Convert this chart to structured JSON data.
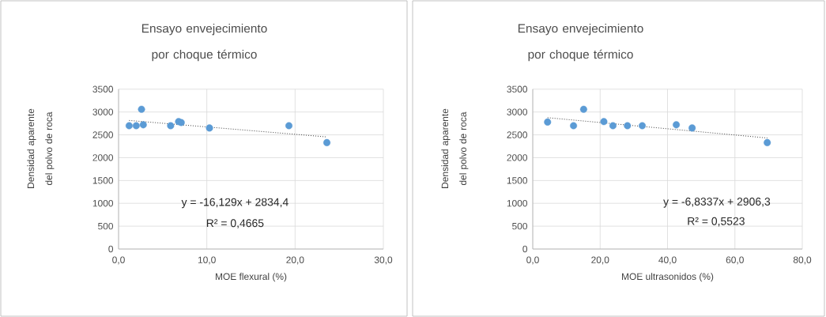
{
  "chart_data": [
    {
      "type": "scatter",
      "title": "Ensayo  envejecimiento por choque térmico",
      "xlabel": "MOE flexural (%)",
      "ylabel": "Densidad aparente del polvo de roca",
      "xlim": [
        0,
        30
      ],
      "xticks": [
        {
          "value": 0,
          "label": "0,0"
        },
        {
          "value": 10,
          "label": "10,0"
        },
        {
          "value": 20,
          "label": "20,0"
        },
        {
          "value": 30,
          "label": "30,0"
        }
      ],
      "ylim": [
        0,
        3500
      ],
      "yticks": [
        0,
        500,
        1000,
        1500,
        2000,
        2500,
        3000,
        3500
      ],
      "grid": true,
      "series": [
        {
          "color": "#5b9bd5",
          "marker": "circle",
          "x": [
            1.2,
            2.0,
            2.6,
            2.8,
            5.9,
            6.8,
            7.1,
            10.3,
            19.3,
            23.6
          ],
          "values": [
            2700,
            2700,
            3060,
            2720,
            2700,
            2790,
            2770,
            2650,
            2700,
            2330
          ]
        },
        {
          "type": "line",
          "color": "#404040",
          "line_style": "dotted",
          "marker": "none",
          "x": [
            1.2,
            23.6
          ],
          "values": [
            2815,
            2454
          ]
        }
      ],
      "annotations": [
        "y = -16,129x + 2834,4",
        "R² = 0,4665"
      ]
    },
    {
      "type": "scatter",
      "title": "Ensayo  envejecimiento por choque térmico",
      "xlabel": "MOE ultrasonidos (%)",
      "ylabel": "Densidad aparente del polvo de roca",
      "xlim": [
        0,
        80
      ],
      "xticks": [
        {
          "value": 0,
          "label": "0,0"
        },
        {
          "value": 20,
          "label": "20,0"
        },
        {
          "value": 40,
          "label": "40,0"
        },
        {
          "value": 60,
          "label": "60,0"
        },
        {
          "value": 80,
          "label": "80,0"
        }
      ],
      "ylim": [
        0,
        3500
      ],
      "yticks": [
        0,
        500,
        1000,
        1500,
        2000,
        2500,
        3000,
        3500
      ],
      "grid": true,
      "series": [
        {
          "color": "#5b9bd5",
          "marker": "circle",
          "x": [
            4.4,
            12.1,
            15.1,
            21.1,
            23.8,
            28.1,
            32.5,
            42.6,
            47.3,
            69.6
          ],
          "values": [
            2780,
            2700,
            3060,
            2790,
            2700,
            2700,
            2700,
            2720,
            2650,
            2330
          ]
        },
        {
          "type": "line",
          "color": "#404040",
          "line_style": "dotted",
          "marker": "none",
          "x": [
            4.4,
            69.6
          ],
          "values": [
            2876,
            2431
          ]
        }
      ],
      "annotations": [
        "y = -6,8337x + 2906,3",
        "R² = 0,5523"
      ]
    }
  ]
}
